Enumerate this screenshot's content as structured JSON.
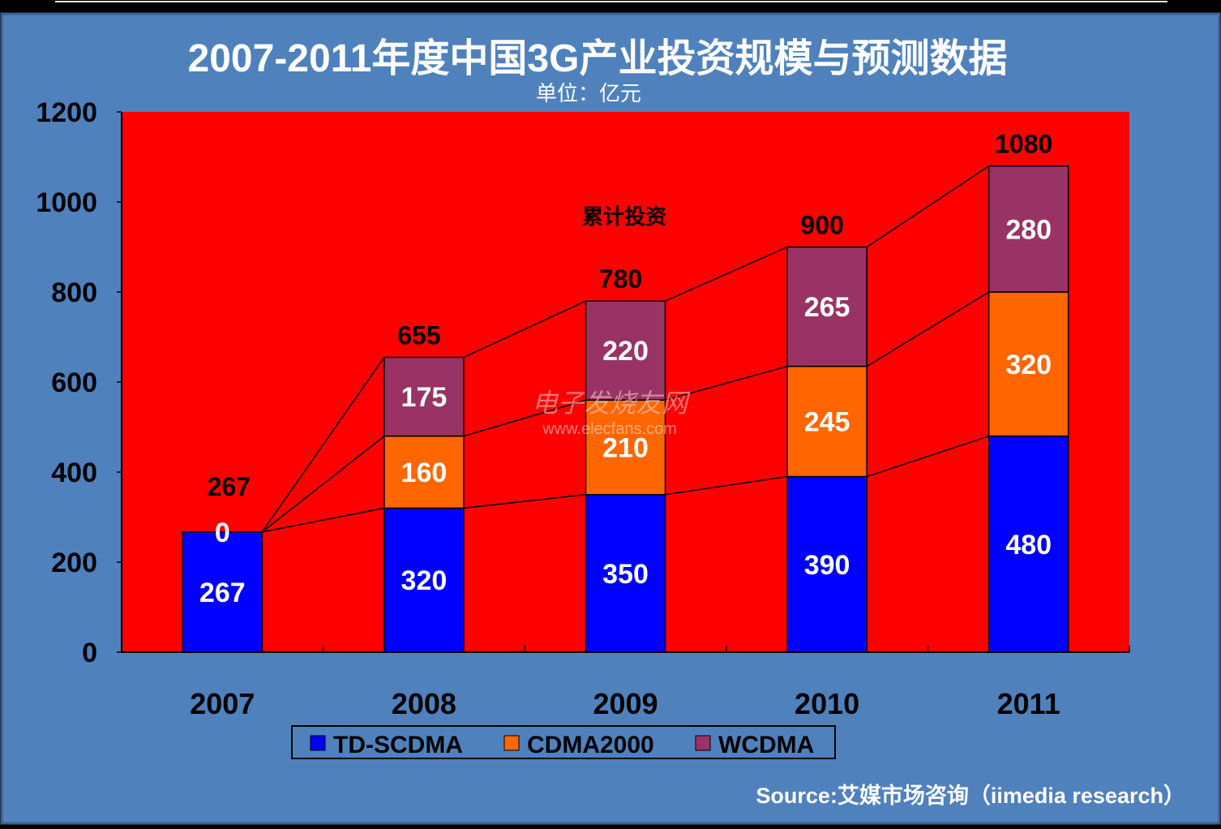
{
  "chart_data": {
    "type": "bar",
    "stacked": true,
    "title": "2007-2011年度中国3G产业投资规模与预测数据",
    "subtitle": "单位：亿元",
    "annotation": "累计投资",
    "categories": [
      "2007",
      "2008",
      "2009",
      "2010",
      "2011"
    ],
    "series": [
      {
        "name": "TD-SCDMA",
        "color": "#0000FF",
        "values": [
          267,
          320,
          350,
          390,
          480
        ]
      },
      {
        "name": "CDMA2000",
        "color": "#FF6600",
        "values": [
          0,
          160,
          210,
          245,
          320
        ]
      },
      {
        "name": "WCDMA",
        "color": "#993366",
        "values": [
          0,
          175,
          220,
          265,
          280
        ]
      }
    ],
    "totals": [
      267,
      655,
      780,
      900,
      1080
    ],
    "ylim": [
      0,
      1200
    ],
    "yticks": [
      0,
      200,
      400,
      600,
      800,
      1000,
      1200
    ],
    "legend": "bottom",
    "grid": false,
    "xlabel": "",
    "ylabel": ""
  },
  "source": "Source:艾媒市场咨询（iimedia research）",
  "watermark": {
    "cn": "电子发烧友网",
    "url": "www.elecfans.com"
  },
  "colors": {
    "background": "#4F81BD",
    "plot": "#FF0000"
  }
}
